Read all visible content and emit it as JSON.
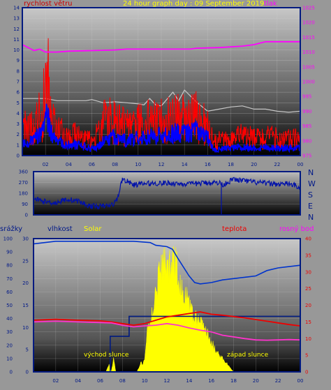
{
  "header": {
    "left_label": "rychlost větru",
    "title": "24 hour graph day : 09 September 2019",
    "right_label": "tlak"
  },
  "colors": {
    "wind_label": "#cc0000",
    "title": "#ffff00",
    "pressure": "#ff00ff",
    "wind_gust": "#ff0000",
    "wind_avg": "#0000ff",
    "frame_blue": "#001a80",
    "humidity": "#0033cc",
    "solar": "#ffff00",
    "temperature": "#ee0000",
    "dewpoint": "#ff33cc",
    "grey_series": "#c8c8c8"
  },
  "compass": [
    "N",
    "W",
    "S",
    "E",
    "N"
  ],
  "bottom_labels": {
    "rain": "srážky",
    "humidity": "vlhkost",
    "solar": "Solar",
    "temperature": "teplota",
    "dewpoint": "rosný bod",
    "sunrise": "východ slunce",
    "sunset": "západ slunce"
  },
  "chart_data": [
    {
      "type": "line",
      "name": "wind_pressure",
      "x_range": [
        0,
        24
      ],
      "x_ticks": [
        "02",
        "04",
        "06",
        "08",
        "10",
        "12",
        "14",
        "16",
        "18",
        "20",
        "22",
        "00"
      ],
      "y_left_range": [
        0,
        14
      ],
      "y_left_ticks": [
        "0",
        "1",
        "2",
        "3",
        "4",
        "5",
        "6",
        "7",
        "8",
        "9",
        "10",
        "11",
        "12",
        "13",
        "14"
      ],
      "y_right_range": [
        975,
        1025
      ],
      "y_right_ticks": [
        "975",
        "980",
        "985",
        "990",
        "995",
        "1000",
        "1005",
        "1010",
        "1015",
        "1020",
        "1025"
      ],
      "pressure": [
        [
          0,
          1012.5
        ],
        [
          0.5,
          1011.5
        ],
        [
          1,
          1010.5
        ],
        [
          1.5,
          1011
        ],
        [
          2,
          1010
        ],
        [
          3,
          1010
        ],
        [
          4,
          1010.3
        ],
        [
          6,
          1010.5
        ],
        [
          8,
          1010.7
        ],
        [
          9,
          1011
        ],
        [
          12,
          1011
        ],
        [
          14.5,
          1011
        ],
        [
          15,
          1011.3
        ],
        [
          17,
          1011.5
        ],
        [
          19,
          1012
        ],
        [
          20,
          1012.5
        ],
        [
          21,
          1013.5
        ],
        [
          24,
          1013.5
        ]
      ],
      "grey": [
        [
          0,
          5.4
        ],
        [
          2,
          5.4
        ],
        [
          3,
          5.2
        ],
        [
          5.5,
          5.2
        ],
        [
          6,
          5.3
        ],
        [
          7,
          5.0
        ],
        [
          8,
          5.1
        ],
        [
          9,
          5.0
        ],
        [
          10,
          4.9
        ],
        [
          10.5,
          4.8
        ],
        [
          11,
          5.4
        ],
        [
          11.5,
          4.8
        ],
        [
          12,
          4.7
        ],
        [
          13,
          6.0
        ],
        [
          13.5,
          5.2
        ],
        [
          14,
          6.2
        ],
        [
          15,
          5.1
        ],
        [
          16,
          4.2
        ],
        [
          17,
          4.4
        ],
        [
          18,
          4.6
        ],
        [
          19,
          4.7
        ],
        [
          20,
          4.4
        ],
        [
          21,
          4.4
        ],
        [
          22,
          4.2
        ],
        [
          23,
          4.1
        ],
        [
          24,
          4.2
        ]
      ],
      "gust_profile": [
        [
          0,
          2.6
        ],
        [
          1,
          3.0
        ],
        [
          1.8,
          4.2
        ],
        [
          2.1,
          9.5
        ],
        [
          2.4,
          4.0
        ],
        [
          3,
          2.4
        ],
        [
          4,
          1.7
        ],
        [
          5,
          2.0
        ],
        [
          6,
          1.3
        ],
        [
          6.5,
          2.0
        ],
        [
          7,
          3.4
        ],
        [
          8,
          3.2
        ],
        [
          9,
          2.6
        ],
        [
          10,
          3.0
        ],
        [
          11,
          3.2
        ],
        [
          12,
          3.2
        ],
        [
          13,
          3.5
        ],
        [
          14,
          3.5
        ],
        [
          15,
          3.6
        ],
        [
          16,
          2.8
        ],
        [
          16.5,
          1.2
        ],
        [
          17,
          1.4
        ],
        [
          18,
          1.5
        ],
        [
          19,
          1.8
        ],
        [
          20,
          1.6
        ],
        [
          21,
          1.7
        ],
        [
          22,
          1.6
        ],
        [
          23,
          1.5
        ],
        [
          24,
          1.6
        ]
      ],
      "avg_profile": [
        [
          0,
          1.2
        ],
        [
          1,
          1.4
        ],
        [
          1.8,
          2.5
        ],
        [
          2.1,
          4.6
        ],
        [
          2.4,
          2.3
        ],
        [
          3,
          1.3
        ],
        [
          4,
          1.0
        ],
        [
          5,
          1.0
        ],
        [
          6,
          0.6
        ],
        [
          7,
          1.3
        ],
        [
          8,
          1.8
        ],
        [
          9,
          1.4
        ],
        [
          10,
          1.7
        ],
        [
          11,
          1.9
        ],
        [
          12,
          1.8
        ],
        [
          13,
          2.1
        ],
        [
          14,
          2.2
        ],
        [
          15,
          2.3
        ],
        [
          16,
          1.7
        ],
        [
          16.5,
          0.5
        ],
        [
          17,
          0.6
        ],
        [
          18,
          0.7
        ],
        [
          19,
          0.8
        ],
        [
          20,
          0.7
        ],
        [
          21,
          0.8
        ],
        [
          22,
          0.7
        ],
        [
          23,
          0.7
        ],
        [
          24,
          0.7
        ]
      ]
    },
    {
      "type": "scatter",
      "name": "wind_direction",
      "x_range": [
        0,
        24
      ],
      "y_range": [
        0,
        360
      ],
      "y_ticks": [
        "0",
        "90",
        "180",
        "270",
        "360"
      ],
      "direction_profile": [
        [
          0,
          135
        ],
        [
          1,
          110
        ],
        [
          2,
          100
        ],
        [
          3,
          130
        ],
        [
          4,
          115
        ],
        [
          5,
          75
        ],
        [
          6,
          70
        ],
        [
          7,
          80
        ],
        [
          7.5,
          120
        ],
        [
          8,
          300
        ],
        [
          9,
          250
        ],
        [
          10,
          260
        ],
        [
          12,
          265
        ],
        [
          14,
          255
        ],
        [
          16,
          270
        ],
        [
          16.8,
          265
        ],
        [
          17,
          250
        ],
        [
          18,
          295
        ],
        [
          20,
          270
        ],
        [
          22,
          255
        ],
        [
          23,
          260
        ],
        [
          24,
          230
        ]
      ]
    },
    {
      "type": "line",
      "name": "temp_humidity_solar",
      "x_range": [
        0,
        24
      ],
      "x_ticks": [
        "02",
        "04",
        "06",
        "08",
        "10",
        "12",
        "14",
        "16",
        "18",
        "20",
        "22",
        "00"
      ],
      "rain_range": [
        0,
        30
      ],
      "rain_ticks": [
        "0",
        "5",
        "10",
        "15",
        "20",
        "25",
        "30"
      ],
      "humidity_range": [
        0,
        100
      ],
      "humidity_ticks": [
        "0",
        "10",
        "20",
        "30",
        "40",
        "50",
        "60",
        "70",
        "80",
        "90",
        "100"
      ],
      "temp_range": [
        0,
        40
      ],
      "temp_ticks": [
        "0",
        "5",
        "10",
        "15",
        "20",
        "25",
        "30",
        "35",
        "40"
      ],
      "humidity": [
        [
          0,
          96
        ],
        [
          1,
          97
        ],
        [
          2,
          98
        ],
        [
          3,
          98
        ],
        [
          6,
          98
        ],
        [
          9,
          98
        ],
        [
          10.5,
          97
        ],
        [
          11,
          95
        ],
        [
          12,
          94
        ],
        [
          12.5,
          92
        ],
        [
          13,
          85
        ],
        [
          14,
          72
        ],
        [
          14.5,
          67
        ],
        [
          15,
          66
        ],
        [
          16,
          67
        ],
        [
          17,
          69
        ],
        [
          18,
          70
        ],
        [
          19,
          71
        ],
        [
          20,
          72
        ],
        [
          21,
          76
        ],
        [
          22,
          78
        ],
        [
          23,
          79
        ],
        [
          24,
          80
        ]
      ],
      "rain_total": [
        [
          0,
          0
        ],
        [
          6.9,
          0
        ],
        [
          6.9,
          8
        ],
        [
          8.6,
          8
        ],
        [
          8.6,
          12.5
        ],
        [
          24,
          12.5
        ]
      ],
      "temperature": [
        [
          0,
          15.5
        ],
        [
          2,
          15.8
        ],
        [
          4,
          15.5
        ],
        [
          6,
          15.3
        ],
        [
          7,
          15.0
        ],
        [
          8,
          14.5
        ],
        [
          9,
          14.0
        ],
        [
          10,
          14.5
        ],
        [
          11,
          15.5
        ],
        [
          12,
          16.5
        ],
        [
          13,
          17.0
        ],
        [
          14,
          17.5
        ],
        [
          15,
          18.0
        ],
        [
          16,
          17.3
        ],
        [
          17,
          17.0
        ],
        [
          18,
          16.6
        ],
        [
          19,
          16.2
        ],
        [
          20,
          15.7
        ],
        [
          21,
          15.2
        ],
        [
          22,
          14.7
        ],
        [
          23,
          14.2
        ],
        [
          24,
          13.8
        ]
      ],
      "dewpoint": [
        [
          0,
          15.0
        ],
        [
          2,
          15.2
        ],
        [
          4,
          15.0
        ],
        [
          6,
          14.8
        ],
        [
          7,
          14.7
        ],
        [
          8,
          14.0
        ],
        [
          9,
          13.5
        ],
        [
          10,
          13.8
        ],
        [
          11,
          14.0
        ],
        [
          12,
          14.5
        ],
        [
          13,
          14.0
        ],
        [
          14,
          13.2
        ],
        [
          15,
          12.5
        ],
        [
          16,
          12.0
        ],
        [
          17,
          11.0
        ],
        [
          18,
          10.5
        ],
        [
          19,
          10.0
        ],
        [
          20,
          9.6
        ],
        [
          21,
          9.5
        ],
        [
          22,
          9.6
        ],
        [
          23,
          9.7
        ],
        [
          24,
          9.6
        ]
      ],
      "solar_profile": [
        [
          0,
          0
        ],
        [
          6.5,
          0
        ],
        [
          6.8,
          2
        ],
        [
          7.0,
          0
        ],
        [
          7.2,
          4
        ],
        [
          7.4,
          0
        ],
        [
          9.3,
          0
        ],
        [
          9.5,
          1.5
        ],
        [
          9.7,
          3
        ],
        [
          9.8,
          2
        ],
        [
          10.0,
          4
        ],
        [
          10.3,
          14
        ],
        [
          10.7,
          18
        ],
        [
          11.0,
          24
        ],
        [
          11.3,
          29
        ],
        [
          11.8,
          33
        ],
        [
          12.3,
          31
        ],
        [
          12.8,
          33
        ],
        [
          13.2,
          25
        ],
        [
          13.7,
          23
        ],
        [
          14.3,
          17
        ],
        [
          14.8,
          15
        ],
        [
          15.3,
          14
        ],
        [
          15.8,
          10
        ],
        [
          16.3,
          7
        ],
        [
          17.0,
          4
        ],
        [
          17.5,
          2
        ],
        [
          18.0,
          0
        ],
        [
          24,
          0
        ]
      ]
    }
  ]
}
